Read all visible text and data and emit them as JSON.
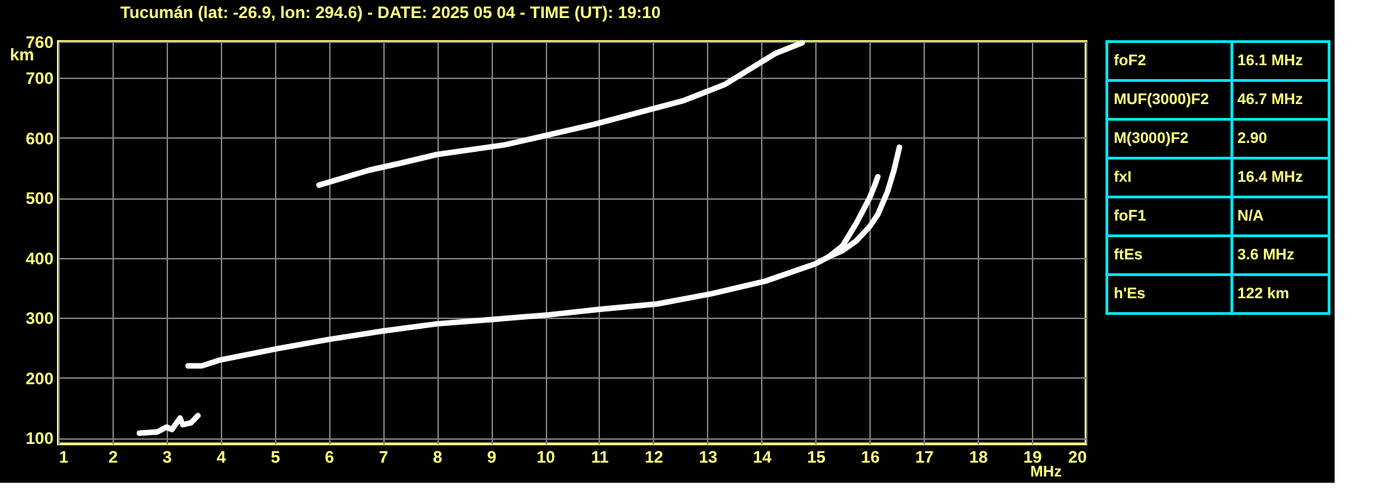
{
  "chart_data": [
    {
      "type": "line",
      "title": "Tucumán (lat: -26.9, lon: 294.6) - DATE: 2025 05 04 - TIME (UT): 19:10",
      "xlabel": "MHz",
      "ylabel": "km",
      "xlim": [
        1,
        20
      ],
      "xticks": [
        1,
        2,
        3,
        4,
        5,
        6,
        7,
        8,
        9,
        10,
        11,
        12,
        13,
        14,
        15,
        16,
        17,
        18,
        19,
        20
      ],
      "ylim": [
        90,
        760
      ],
      "yticks": [
        100,
        200,
        300,
        400,
        500,
        600,
        700,
        760
      ],
      "grid": true,
      "marker": "none",
      "line_style": "solid",
      "series": [
        {
          "color": "#ffffff",
          "x": [
            3.4,
            3.65,
            4.0,
            5.07,
            6.0,
            7.0,
            8.0,
            9.0,
            10.07,
            11.0,
            12.07,
            13.07,
            14.07,
            15.0,
            15.25,
            15.5,
            15.75,
            16.0,
            16.1,
            16.15
          ],
          "values": [
            220,
            220,
            230,
            249,
            264,
            278,
            290,
            297,
            305,
            314,
            323,
            340,
            361,
            390,
            402,
            420,
            457,
            500,
            522,
            535
          ]
        },
        {
          "color": "#ffffff",
          "x": [
            15.25,
            15.5,
            15.75,
            16.0,
            16.15,
            16.33,
            16.45,
            16.55
          ],
          "values": [
            402,
            412,
            428,
            452,
            472,
            510,
            546,
            584
          ]
        },
        {
          "color": "#ffffff",
          "x": [
            2.5,
            2.83,
            3.0,
            3.1,
            3.25,
            3.3,
            3.45,
            3.58
          ],
          "values": [
            108,
            110,
            118,
            114,
            133,
            122,
            125,
            137
          ]
        },
        {
          "color": "#ffffff",
          "x": [
            5.82,
            6.75,
            7.3,
            8.0,
            9.25,
            10.9,
            12.57,
            13.33,
            14.25,
            14.75
          ],
          "values": [
            521,
            546,
            557,
            572,
            588,
            622,
            662,
            689,
            740,
            758
          ]
        }
      ]
    },
    {
      "type": "other",
      "annotations": [
        "foF2",
        "16.1 MHz",
        "MUF(3000)F2",
        "46.7 MHz",
        "M(3000)F2",
        "2.90",
        "fxI",
        "16.4 MHz",
        "foF1",
        "N/A",
        "ftEs",
        "3.6 MHz",
        "h'Es",
        "122 km"
      ]
    }
  ]
}
